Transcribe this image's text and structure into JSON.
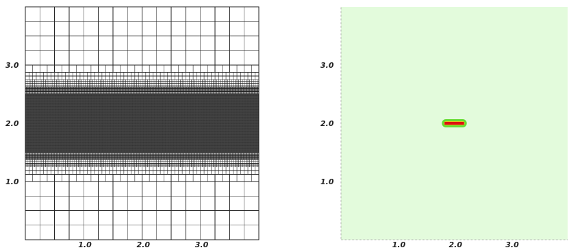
{
  "left_panel": {
    "type": "mesh",
    "x_ticks": [
      "1.0",
      "2.0",
      "3.0"
    ],
    "y_ticks": [
      "3.0",
      "2.0",
      "1.0"
    ],
    "x_range": [
      0,
      4
    ],
    "y_range": [
      0,
      4
    ],
    "dense_band": [
      1.5,
      2.5
    ],
    "coarse_cell": 0.25
  },
  "right_panel": {
    "type": "field",
    "x_ticks": [
      "1.0",
      "2.0",
      "3.0"
    ],
    "y_ticks": [
      "3.0",
      "2.0",
      "1.0"
    ],
    "x_range": [
      0,
      4
    ],
    "y_range": [
      0,
      4
    ],
    "background_color": "#e3fbdc",
    "marker": {
      "center_x": 2.0,
      "center_y": 2.0,
      "width": 0.44,
      "height": 0.14
    },
    "marker_colors": {
      "outer": "#66dd33",
      "inner": "#dd1111",
      "core": "#cc0000"
    }
  }
}
